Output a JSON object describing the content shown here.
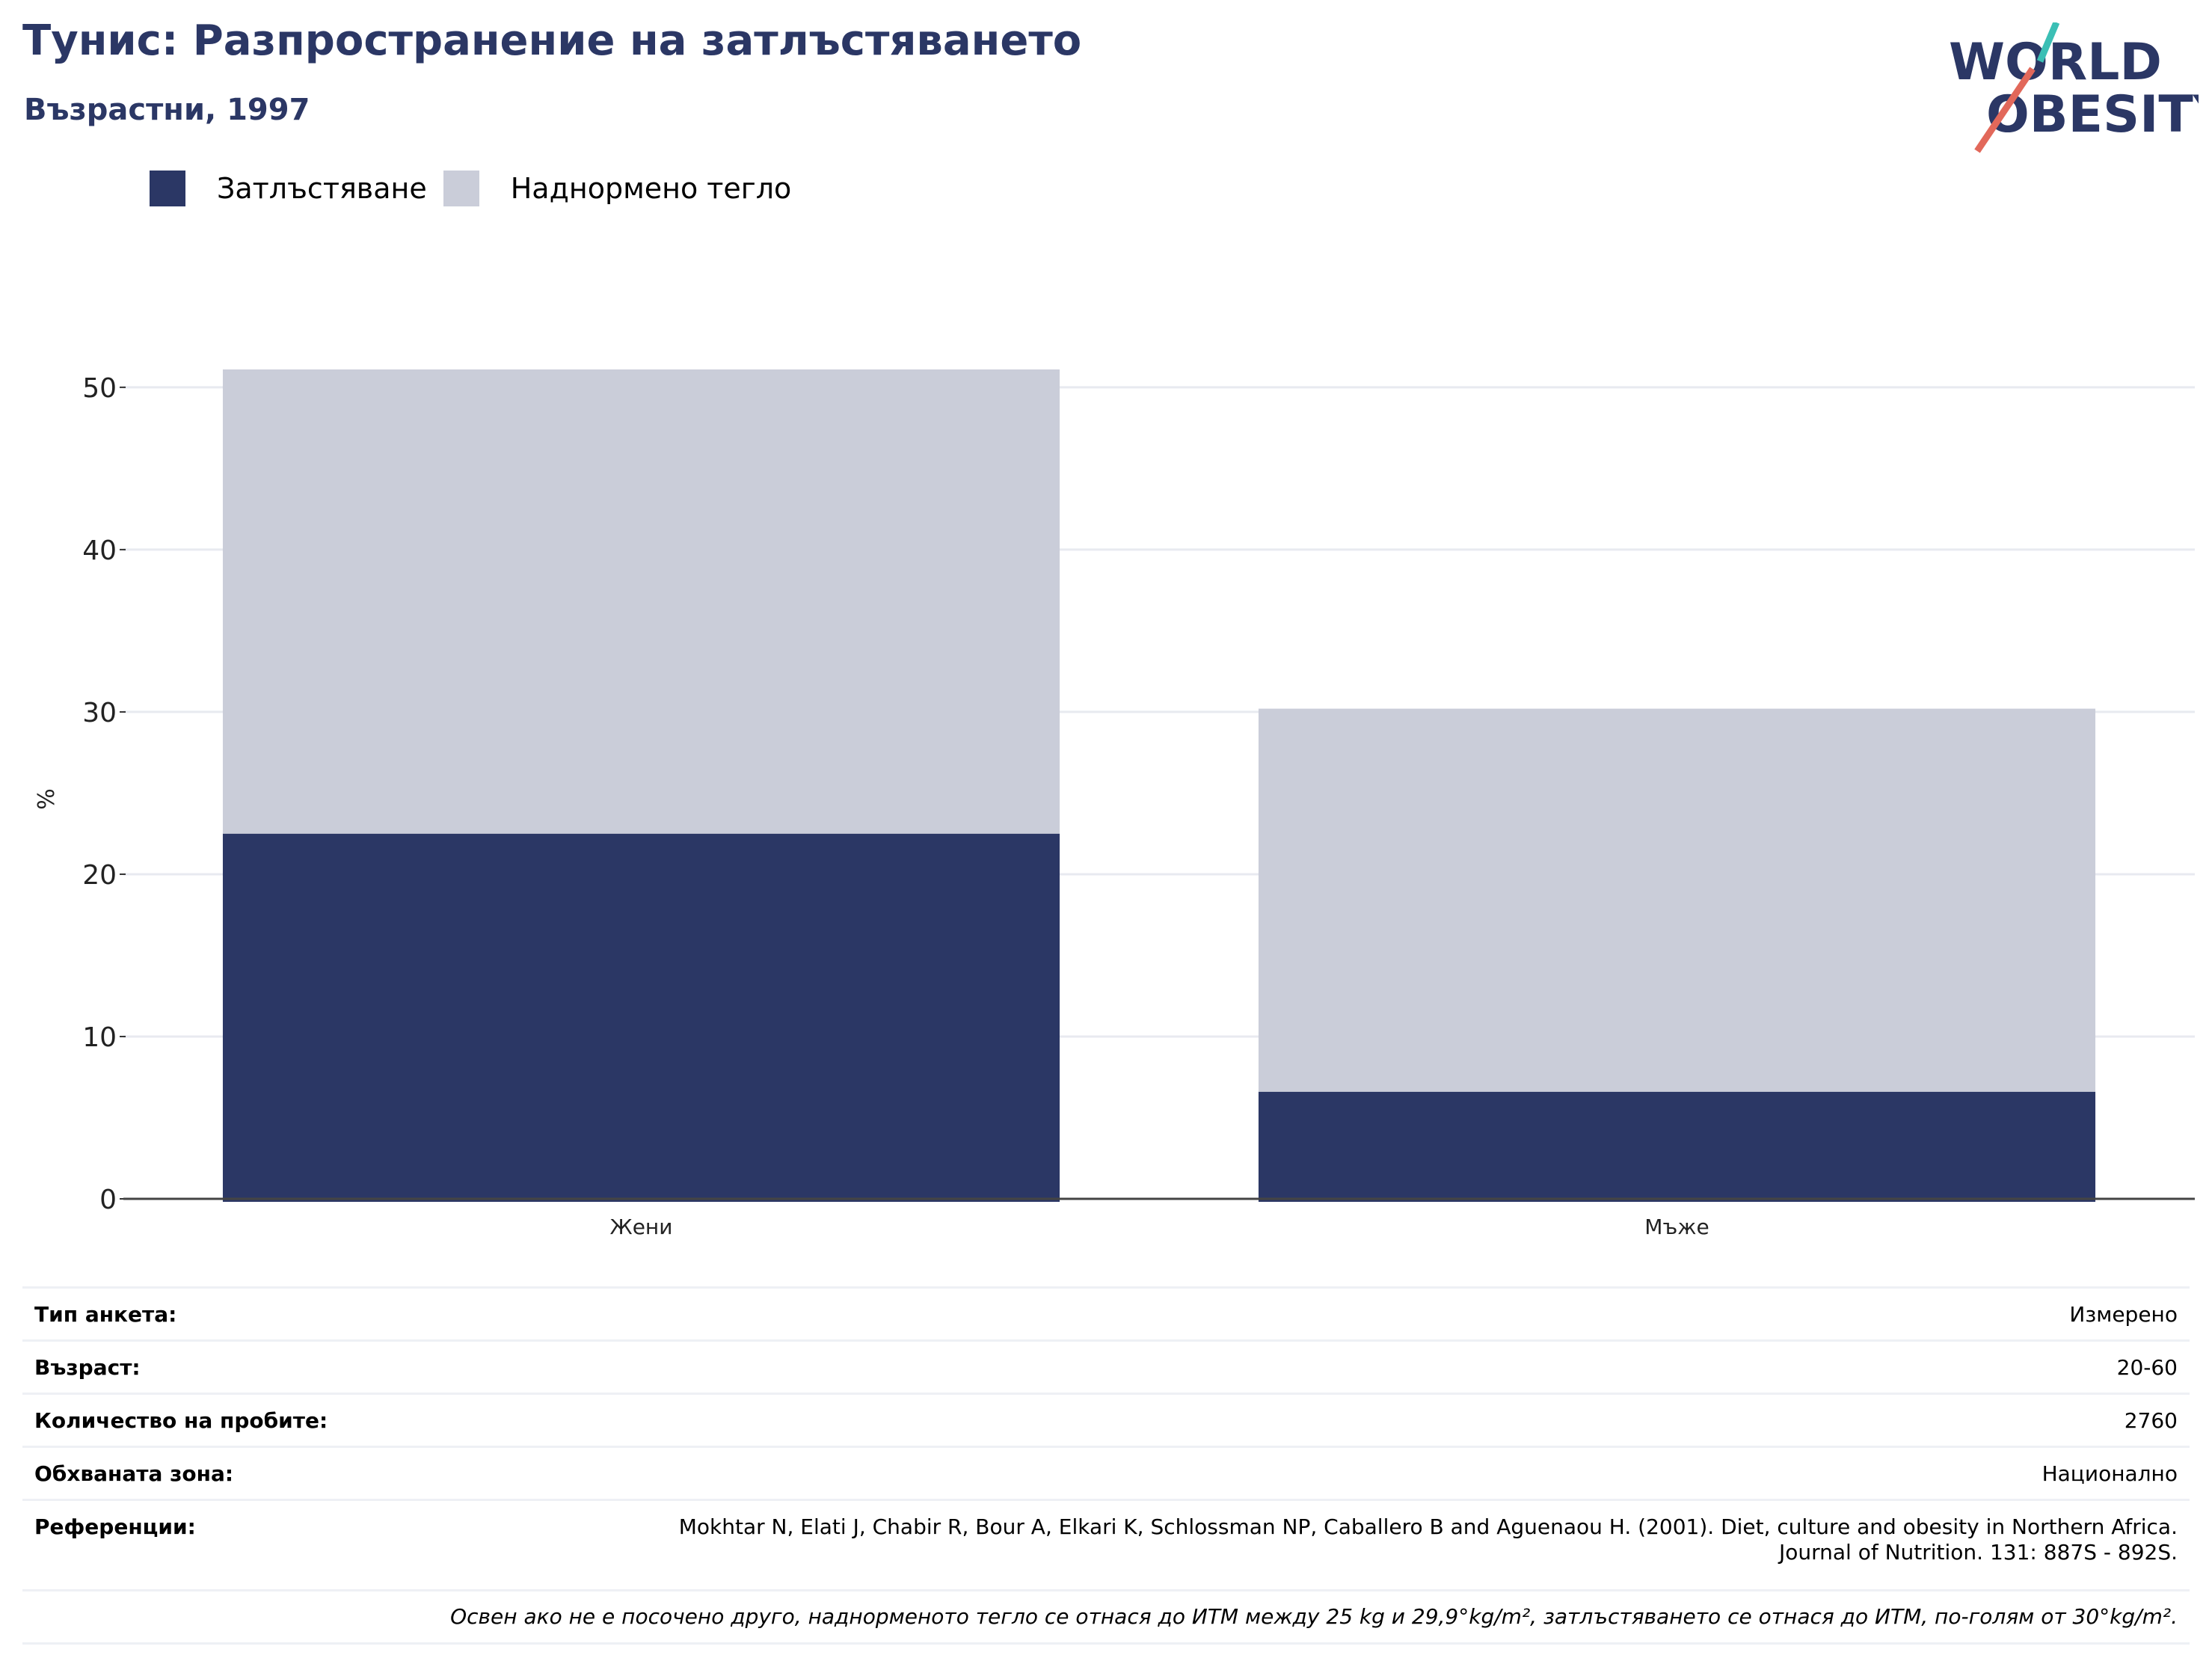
{
  "header": {
    "title": "Тунис: Разпространение на затлъстяването",
    "subtitle": "Възрастни, 1997"
  },
  "logo": {
    "line1": "WORLD",
    "line2": "OBESITY"
  },
  "colors": {
    "obesity": "#2b3765",
    "overweight": "#cacdd9",
    "title": "#2b3765",
    "grid": "#e8eaf0",
    "logo_teal": "#3bbfb5",
    "logo_red": "#e2685a"
  },
  "chart_data": {
    "type": "bar",
    "stacked": true,
    "categories": [
      "Жени",
      "Мъже"
    ],
    "series": [
      {
        "name": "Затлъстяване",
        "values": [
          22.5,
          6.6
        ]
      },
      {
        "name": "Наднормено тегло",
        "values": [
          28.6,
          23.6
        ]
      }
    ],
    "ylabel": "%",
    "ylim": [
      0,
      51.1
    ],
    "yticks": [
      0,
      10,
      20,
      30,
      40,
      50
    ],
    "grid": true,
    "legend": "top-left"
  },
  "info": {
    "rows": [
      {
        "key": "Тип анкета:",
        "value": "Измерено"
      },
      {
        "key": "Възраст:",
        "value": "20-60"
      },
      {
        "key": "Количество на пробите:",
        "value": "2760"
      },
      {
        "key": "Обхваната зона:",
        "value": "Национално"
      },
      {
        "key": "Референции:",
        "value": "Mokhtar N, Elati J, Chabir R, Bour A, Elkari K, Schlossman NP, Caballero B and Aguenaou H. (2001). Diet, culture and obesity in Northern Africa. Journal of Nutrition. 131: 887S - 892S."
      }
    ],
    "note": "Освен ако не е посочено друго, наднорменото тегло се отнася до ИТМ между 25 kg и 29,9°kg/m², затлъстяването се отнася до ИТМ, по-голям от 30°kg/m²."
  }
}
